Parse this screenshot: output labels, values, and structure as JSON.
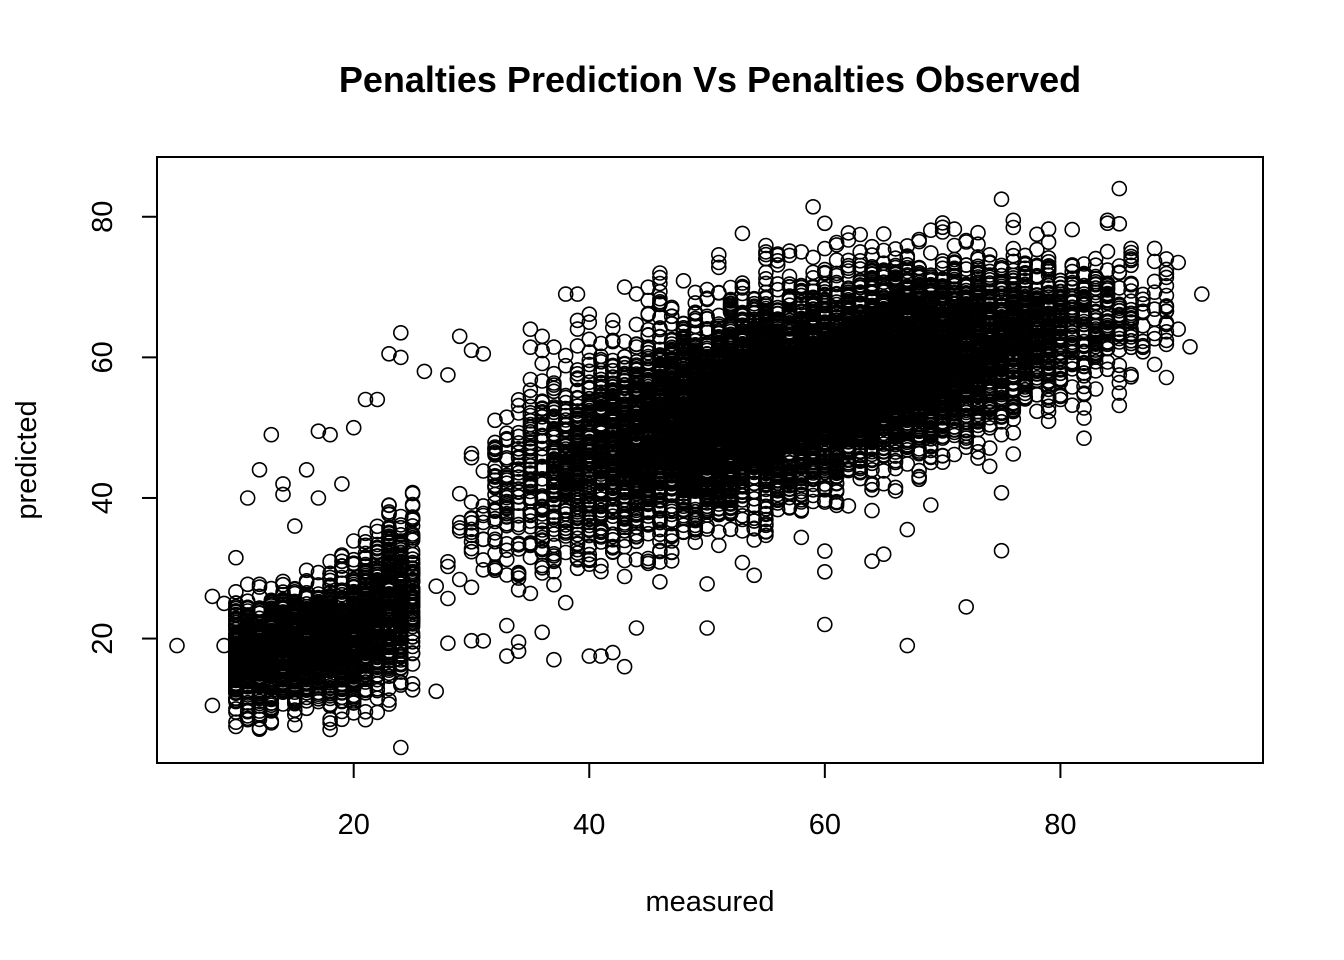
{
  "chart_data": {
    "type": "scatter",
    "title": "Penalties Prediction Vs Penalties Observed",
    "xlabel": "measured",
    "ylabel": "predicted",
    "xlim": [
      3.3,
      97.2
    ],
    "ylim": [
      2.3,
      88.5
    ],
    "x_ticks": [
      20,
      40,
      60,
      80
    ],
    "y_ticks": [
      20,
      40,
      60,
      80
    ],
    "x_tick_labels": [
      "20",
      "40",
      "60",
      "80"
    ],
    "y_tick_labels": [
      "20",
      "40",
      "60",
      "80"
    ],
    "grid": false,
    "marker": "open-circle",
    "marker_color": "#000000",
    "points": [
      [
        5,
        19
      ],
      [
        8,
        26
      ],
      [
        8,
        10.5
      ],
      [
        9,
        19
      ],
      [
        9,
        25
      ],
      [
        10,
        31.5
      ],
      [
        11,
        40
      ],
      [
        12,
        44
      ],
      [
        12,
        8.5
      ],
      [
        13,
        49
      ],
      [
        13,
        8
      ],
      [
        14,
        40.5
      ],
      [
        14,
        42
      ],
      [
        15,
        36
      ],
      [
        16,
        44
      ],
      [
        17,
        49.5
      ],
      [
        17,
        40
      ],
      [
        18,
        49
      ],
      [
        18,
        8
      ],
      [
        19,
        42
      ],
      [
        20,
        50
      ],
      [
        21,
        54
      ],
      [
        22,
        54
      ],
      [
        22,
        9.5
      ],
      [
        23,
        60.5
      ],
      [
        24,
        63.5
      ],
      [
        24,
        60
      ],
      [
        24,
        4.5
      ],
      [
        26,
        58
      ],
      [
        27,
        12.5
      ],
      [
        28,
        57.5
      ],
      [
        29,
        63
      ],
      [
        30,
        61
      ],
      [
        31,
        60.5
      ],
      [
        33,
        17.5
      ],
      [
        34,
        19.5
      ],
      [
        35,
        64
      ],
      [
        36,
        63
      ],
      [
        37,
        17
      ],
      [
        38,
        69
      ],
      [
        39,
        69
      ],
      [
        40,
        65
      ],
      [
        40,
        17.5
      ],
      [
        41,
        17.5
      ],
      [
        42,
        18
      ],
      [
        43,
        70
      ],
      [
        43,
        16
      ],
      [
        44,
        21.5
      ],
      [
        46,
        72
      ],
      [
        46,
        70.5
      ],
      [
        50,
        21.5
      ],
      [
        51,
        73.5
      ],
      [
        54,
        29
      ],
      [
        55,
        75
      ],
      [
        56,
        74.5
      ],
      [
        57,
        74.5
      ],
      [
        58,
        75
      ],
      [
        60,
        29.5
      ],
      [
        60,
        22
      ],
      [
        61,
        76
      ],
      [
        63,
        75
      ],
      [
        64,
        31
      ],
      [
        65,
        32
      ],
      [
        66,
        41
      ],
      [
        67,
        35.5
      ],
      [
        67,
        19
      ],
      [
        69,
        39
      ],
      [
        70,
        78.5
      ],
      [
        72,
        24.5
      ],
      [
        74,
        44.5
      ],
      [
        75,
        82.5
      ],
      [
        75,
        32.5
      ],
      [
        76,
        79.5
      ],
      [
        78,
        77.5
      ],
      [
        82,
        48.5
      ],
      [
        84,
        79.5
      ],
      [
        85,
        84
      ],
      [
        85,
        79
      ],
      [
        86,
        75.5
      ],
      [
        87,
        64.5
      ],
      [
        88,
        75.5
      ],
      [
        88,
        59
      ],
      [
        89,
        74
      ],
      [
        90,
        73.5
      ],
      [
        90,
        64
      ],
      [
        91,
        61.5
      ],
      [
        92,
        69
      ]
    ],
    "density_model": {
      "description": "dense main cloud, predicted ≈ trend(measured) ± spread",
      "trend": [
        [
          10,
          17.5
        ],
        [
          20,
          20.5
        ],
        [
          25,
          27
        ],
        [
          30,
          36
        ],
        [
          35,
          42
        ],
        [
          40,
          46
        ],
        [
          50,
          51.5
        ],
        [
          60,
          56
        ],
        [
          70,
          60.5
        ],
        [
          80,
          64.5
        ],
        [
          90,
          67
        ]
      ],
      "spread": [
        [
          10,
          4.5
        ],
        [
          20,
          6
        ],
        [
          30,
          9
        ],
        [
          40,
          9.5
        ],
        [
          50,
          9
        ],
        [
          60,
          8.5
        ],
        [
          70,
          8
        ],
        [
          80,
          6.5
        ],
        [
          90,
          5
        ]
      ],
      "x_range": [
        9.5,
        89
      ],
      "n_points": 14000,
      "x_distribution_peak": 45
    }
  }
}
